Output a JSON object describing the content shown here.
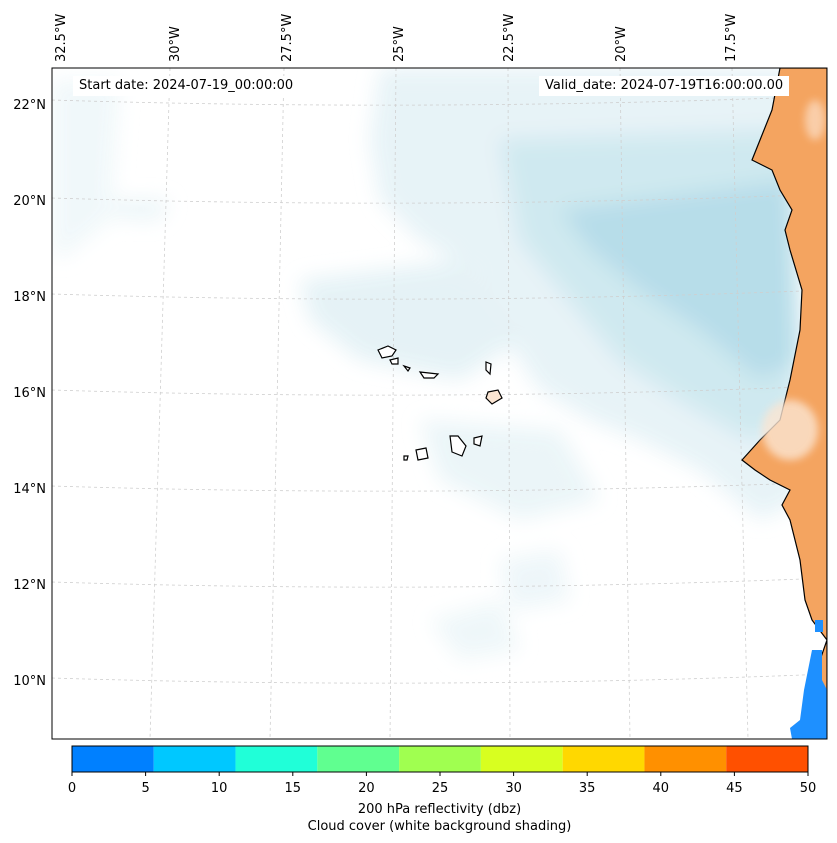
{
  "map": {
    "start_date": "Start date: 2024-07-19_00:00:00",
    "valid_date": "Valid_date: 2024-07-19T16:00:00.00",
    "lon_labels": [
      "32.5°W",
      "30°W",
      "27.5°W",
      "25°W",
      "22.5°W",
      "20°W",
      "17.5°W"
    ],
    "lat_labels": [
      "22°N",
      "20°N",
      "18°N",
      "16°N",
      "14°N",
      "12°N",
      "10°N"
    ],
    "colors": {
      "land": "#f4a460",
      "cloud": "#add8e6",
      "coast": "#000000",
      "grid": "#c8c8c8"
    }
  },
  "colorbar": {
    "ticks": [
      "0",
      "5",
      "10",
      "15",
      "20",
      "25",
      "30",
      "35",
      "40",
      "45",
      "50"
    ],
    "colors": [
      "#0080ff",
      "#00c8ff",
      "#20ffd8",
      "#60ff90",
      "#a0ff50",
      "#d8ff20",
      "#ffd800",
      "#ff9000",
      "#ff5000"
    ],
    "label1": "200 hPa reflectivity (dbz)",
    "label2": "Cloud cover (white background shading)"
  }
}
